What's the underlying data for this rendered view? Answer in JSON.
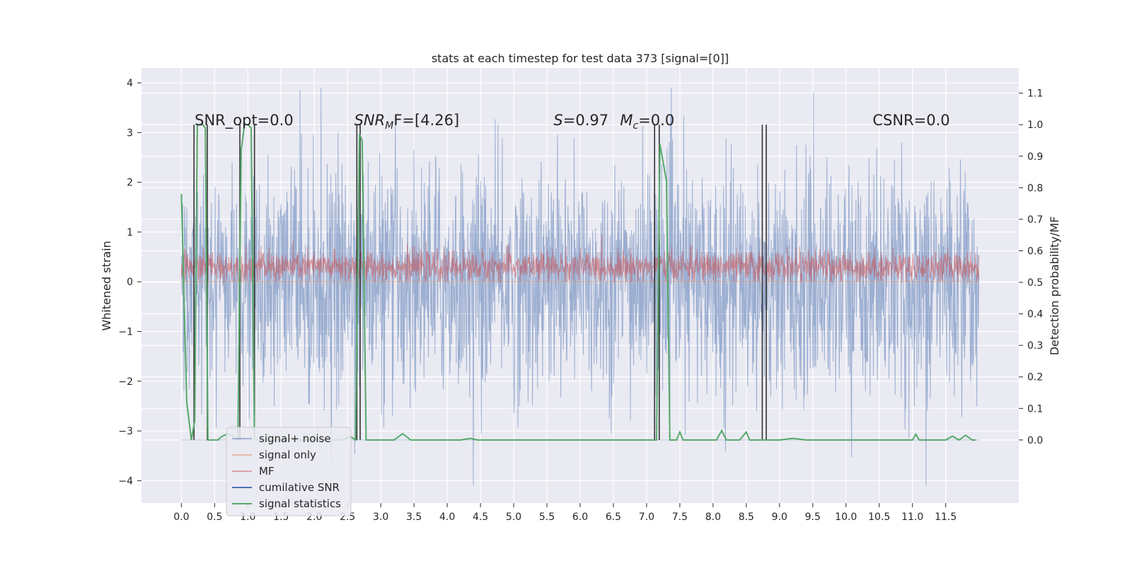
{
  "chart_data": {
    "type": "line",
    "title": "stats at each timestep for test data 373 [signal=[0]]",
    "xlabel": "",
    "ylabel": "Whitened strain",
    "y2label": "Detection probability/MF",
    "xlim": [
      -0.6,
      12.6
    ],
    "ylim": [
      -4.45,
      4.3
    ],
    "y2lim": [
      -0.2,
      1.18
    ],
    "x_ticks": [
      0.0,
      0.5,
      1.0,
      1.5,
      2.0,
      2.5,
      3.0,
      3.5,
      4.0,
      4.5,
      5.0,
      5.5,
      6.0,
      6.5,
      7.0,
      7.5,
      8.0,
      8.5,
      9.0,
      9.5,
      10.0,
      10.5,
      11.0,
      11.5
    ],
    "y_ticks": [
      -4,
      -3,
      -2,
      -1,
      0,
      1,
      2,
      3,
      4
    ],
    "y2_ticks": [
      0.0,
      0.1,
      0.2,
      0.3,
      0.4,
      0.5,
      0.6,
      0.7,
      0.8,
      0.9,
      1.0,
      1.1
    ],
    "grid": true,
    "legend_position": "lower-left",
    "annotations": [
      {
        "text": "SNR_opt=0.0",
        "x": 0.2,
        "y": 3.15
      },
      {
        "text": "SNR_MF=[4.26]",
        "main": "SNR",
        "sub": "M",
        "tail": "F=[4.26]",
        "x": 2.6,
        "y": 3.15
      },
      {
        "text": "S=0.97",
        "main": "S",
        "tail": "=0.97",
        "x": 5.6,
        "y": 3.15
      },
      {
        "text": "M_c=0.0",
        "main": "M",
        "sub": "c",
        "tail": "=0.0",
        "x": 6.6,
        "y": 3.15
      },
      {
        "text": "CSNR=0.0",
        "x": 10.4,
        "y": 3.15
      }
    ],
    "series": [
      {
        "name": "signal+ noise",
        "color": "#4c72b0",
        "axis": "left",
        "kind": "noise",
        "amplitude_envelope": [
          -4.1,
          3.9
        ],
        "x_range": [
          0.0,
          12.0
        ]
      },
      {
        "name": "signal only",
        "color": "#dd8452",
        "axis": "left",
        "kind": "flat",
        "value": 0.0
      },
      {
        "name": "MF",
        "color": "#c44e52",
        "axis": "left",
        "kind": "noise",
        "amplitude_envelope": [
          0.0,
          0.95
        ],
        "x_range": [
          0.0,
          12.0
        ]
      },
      {
        "name": "cumilative SNR",
        "color": "#4c72b0",
        "axis": "right",
        "kind": "flat",
        "value": 0.0
      },
      {
        "name": "signal statistics",
        "color": "#55a868",
        "axis": "right",
        "kind": "line",
        "x": [
          0.0,
          0.08,
          0.15,
          0.2,
          0.24,
          0.28,
          0.32,
          0.36,
          0.4,
          0.45,
          0.55,
          0.6,
          0.7,
          0.8,
          0.85,
          0.9,
          0.95,
          1.0,
          1.05,
          1.1,
          1.15,
          1.2,
          1.5,
          1.8,
          2.1,
          2.4,
          2.55,
          2.62,
          2.68,
          2.72,
          2.78,
          2.85,
          3.0,
          3.2,
          3.33,
          3.45,
          3.6,
          3.8,
          4.0,
          4.2,
          4.35,
          4.45,
          4.6,
          5.0,
          5.5,
          6.0,
          6.5,
          7.0,
          7.1,
          7.15,
          7.2,
          7.3,
          7.35,
          7.45,
          7.5,
          7.55,
          7.7,
          7.9,
          8.05,
          8.13,
          8.2,
          8.4,
          8.5,
          8.55,
          8.65,
          8.73,
          8.78,
          8.83,
          8.9,
          9.0,
          9.2,
          9.4,
          9.6,
          10.0,
          10.4,
          10.8,
          11.0,
          11.05,
          11.1,
          11.3,
          11.5,
          11.6,
          11.7,
          11.8,
          11.9,
          11.95
        ],
        "y": [
          0.78,
          0.12,
          0.0,
          0.06,
          1.0,
          1.0,
          1.0,
          0.99,
          0.0,
          0.0,
          0.0,
          0.01,
          0.02,
          0.01,
          0.0,
          0.92,
          1.0,
          1.0,
          0.99,
          0.0,
          0.0,
          0.0,
          0.0,
          0.0,
          0.0,
          0.0,
          0.01,
          0.0,
          0.97,
          0.95,
          0.0,
          0.0,
          0.0,
          0.0,
          0.02,
          0.0,
          0.0,
          0.0,
          0.0,
          0.0,
          0.005,
          0.0,
          0.0,
          0.0,
          0.0,
          0.0,
          0.0,
          0.0,
          0.0,
          0.0,
          0.94,
          0.82,
          0.0,
          0.0,
          0.025,
          0.0,
          0.0,
          0.0,
          0.0,
          0.03,
          0.0,
          0.0,
          0.025,
          0.0,
          0.0,
          0.0,
          0.0,
          0.0,
          0.0,
          0.0,
          0.005,
          0.0,
          0.0,
          0.0,
          0.0,
          0.0,
          0.0,
          0.018,
          0.0,
          0.0,
          0.0,
          0.012,
          0.0,
          0.015,
          0.0,
          0.0
        ]
      }
    ],
    "vertical_lines": {
      "color": "#333333",
      "x": [
        0.19,
        0.39,
        0.88,
        1.1,
        2.64,
        2.69,
        7.12,
        7.19,
        8.74,
        8.8
      ]
    }
  }
}
